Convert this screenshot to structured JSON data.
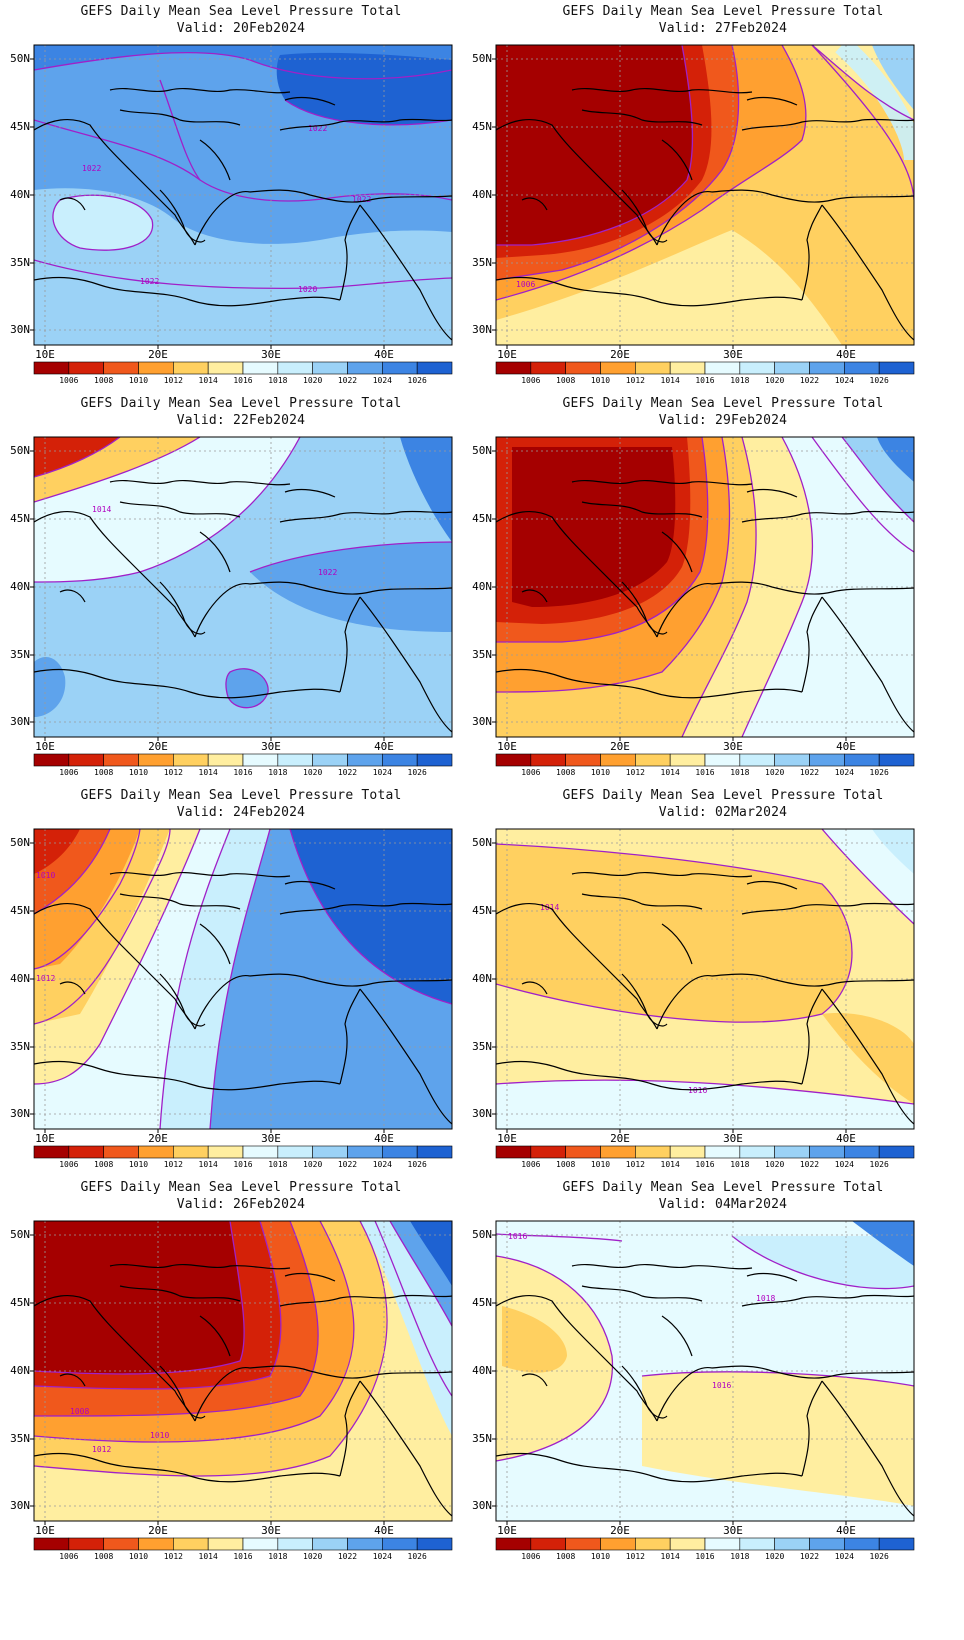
{
  "panel_title": "GEFS Daily Mean Sea Level Pressure Total",
  "lat_labels": [
    "50N",
    "45N",
    "40N",
    "35N",
    "30N"
  ],
  "lon_labels": [
    "10E",
    "20E",
    "30E",
    "40E"
  ],
  "colorbar": {
    "levels": [
      "1006",
      "1008",
      "1010",
      "1012",
      "1014",
      "1016",
      "1018",
      "1020",
      "1022",
      "1024",
      "1026"
    ],
    "colors": [
      "#a50000",
      "#d42108",
      "#f0581c",
      "#ffa030",
      "#ffd060",
      "#ffeea0",
      "#e6fbff",
      "#c9effd",
      "#9bd2f6",
      "#5ea3ec",
      "#3c84e3",
      "#1e62d2"
    ]
  },
  "colors": {
    "contour": "#a020c8",
    "coast": "#000000",
    "grid": "#9a9a9a"
  },
  "panels": [
    {
      "valid": "Valid: 20Feb2024",
      "labels": [
        "1022",
        "1022",
        "1022",
        "1020",
        "1022"
      ],
      "shade": "blue"
    },
    {
      "valid": "Valid: 27Feb2024",
      "labels": [
        "1006"
      ],
      "shade": "red"
    },
    {
      "valid": "Valid: 22Feb2024",
      "labels": [
        "1014",
        "1022"
      ],
      "shade": "lightblue"
    },
    {
      "valid": "Valid: 29Feb2024",
      "labels": [],
      "shade": "red"
    },
    {
      "valid": "Valid: 24Feb2024",
      "labels": [
        "1010",
        "1012"
      ],
      "shade": "mixed"
    },
    {
      "valid": "Valid: 02Mar2024",
      "labels": [
        "1014",
        "1016"
      ],
      "shade": "yellow"
    },
    {
      "valid": "Valid: 26Feb2024",
      "labels": [
        "1008",
        "1010",
        "1012"
      ],
      "shade": "red"
    },
    {
      "valid": "Valid: 04Mar2024",
      "labels": [
        "1016",
        "1018",
        "1016"
      ],
      "shade": "pale"
    }
  ]
}
